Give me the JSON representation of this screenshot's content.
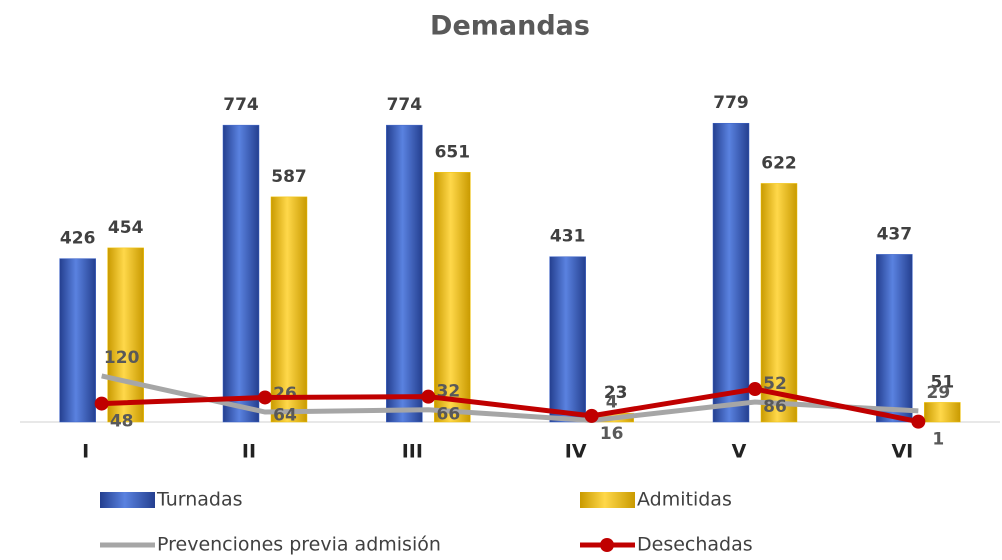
{
  "chart_data": {
    "type": "bar",
    "title": "Demandas",
    "categories": [
      "I",
      "II",
      "III",
      "IV",
      "V",
      "VI"
    ],
    "ylim": [
      0,
      850
    ],
    "series": [
      {
        "name": "Turnadas",
        "type": "bar",
        "color": "#3b62c9",
        "values": [
          426,
          774,
          774,
          431,
          779,
          437
        ]
      },
      {
        "name": "Admitidas",
        "type": "bar",
        "color": "#f2c200",
        "values": [
          454,
          587,
          651,
          23,
          622,
          51
        ]
      },
      {
        "name": "Prevenciones previa admisión",
        "type": "line",
        "color": "#a6a6a6",
        "values": [
          120,
          26,
          32,
          4,
          52,
          29
        ]
      },
      {
        "name": "Desechadas",
        "type": "line",
        "color": "#c00000",
        "values": [
          48,
          64,
          66,
          16,
          86,
          1
        ]
      }
    ]
  }
}
